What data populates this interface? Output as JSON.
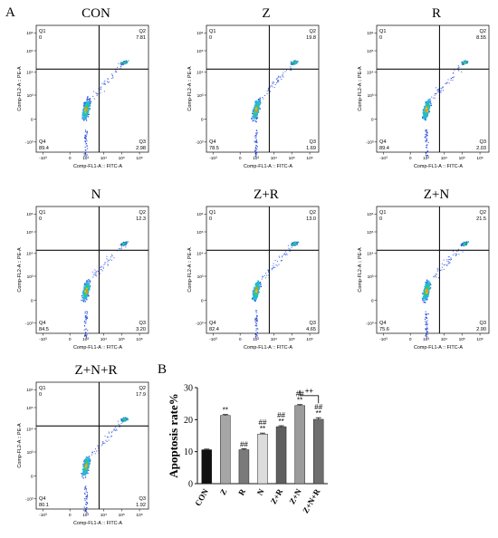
{
  "figure": {
    "panel_labels": [
      "A",
      "B"
    ]
  },
  "flow_panels": [
    {
      "title": "CON",
      "q1": "0",
      "q2": "7.81",
      "q3": "2.98",
      "q4": "89.4"
    },
    {
      "title": "Z",
      "q1": "0",
      "q2": "19.8",
      "q3": "1.69",
      "q4": "78.5"
    },
    {
      "title": "R",
      "q1": "0",
      "q2": "8.55",
      "q3": "2.03",
      "q4": "89.4"
    },
    {
      "title": "N",
      "q1": "0",
      "q2": "12.3",
      "q3": "3.20",
      "q4": "84.5"
    },
    {
      "title": "Z+R",
      "q1": "0",
      "q2": "13.0",
      "q3": "4.65",
      "q4": "82.4"
    },
    {
      "title": "Z+N",
      "q1": "0",
      "q2": "21.5",
      "q3": "2.90",
      "q4": "75.6"
    },
    {
      "title": "Z+N+R",
      "q1": "0",
      "q2": "17.9",
      "q3": "1.92",
      "q4": "80.1"
    }
  ],
  "flow_axes": {
    "quadrant_labels": [
      "Q1",
      "Q2",
      "Q3",
      "Q4"
    ],
    "xlabel": "Comp-FL1-A :: FITC-A",
    "ylabel": "Comp-FL2-A :: PE-A",
    "x_ticks": [
      "-10³",
      "0",
      "10³",
      "10⁴",
      "10⁵",
      "10⁶"
    ],
    "y_ticks": [
      "10⁶",
      "10⁵",
      "10⁴",
      "10³",
      "0",
      "-10³"
    ]
  },
  "chart_data": {
    "type": "bar",
    "title": "",
    "xlabel": "",
    "ylabel": "Apoptosis rate%",
    "ylim": [
      0,
      30
    ],
    "yticks": [
      0,
      10,
      20,
      30
    ],
    "grid": false,
    "categories": [
      "CON",
      "Z",
      "R",
      "N",
      "Z+R",
      "Z+N",
      "Z+N+R"
    ],
    "values": [
      10.6,
      21.3,
      10.6,
      15.5,
      17.8,
      24.4,
      20.1
    ],
    "errors": [
      0.2,
      0.3,
      0.3,
      0.3,
      0.3,
      0.3,
      0.5
    ],
    "colors": [
      "#111111",
      "#a6a6a6",
      "#7a7a7a",
      "#dcdcdc",
      "#5f5f5f",
      "#9c9c9c",
      "#6e6e6e"
    ],
    "annotations": [
      {
        "category": "Z",
        "marks": [
          "**"
        ]
      },
      {
        "category": "R",
        "marks": [
          "##"
        ]
      },
      {
        "category": "N",
        "marks": [
          "##",
          "**"
        ]
      },
      {
        "category": "Z+R",
        "marks": [
          "##",
          "**"
        ]
      },
      {
        "category": "Z+N",
        "marks": [
          "##",
          "**"
        ]
      },
      {
        "category": "Z+N+R",
        "marks": [
          "##",
          "**"
        ]
      }
    ],
    "bracket": {
      "from": "Z+N",
      "to": "Z+N+R",
      "label": "++"
    }
  }
}
